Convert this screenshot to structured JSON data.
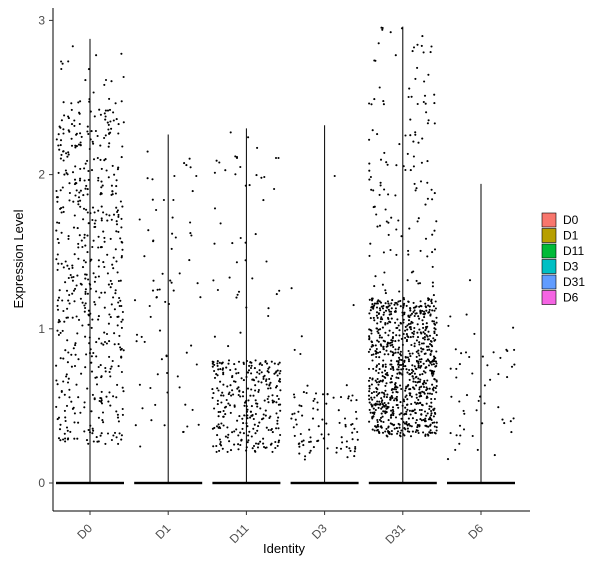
{
  "chart_data": {
    "type": "violin",
    "xlabel": "Identity",
    "ylabel": "Expression Level",
    "ylim": [
      -0.08,
      3.05
    ],
    "yticks": [
      0,
      1,
      2,
      3
    ],
    "categories": [
      "D0",
      "D1",
      "D11",
      "D3",
      "D31",
      "D6"
    ],
    "groups": [
      {
        "name": "D0",
        "color": "#F8766D",
        "max": 2.88,
        "zero_band": true,
        "nonzero_count": 560,
        "nonzero_min": 0.25,
        "nonzero_max": 2.88,
        "dense_range": [
          0.25,
          2.5
        ]
      },
      {
        "name": "D1",
        "color": "#B79F00",
        "max": 2.26,
        "zero_band": true,
        "nonzero_count": 75,
        "nonzero_min": 0.2,
        "nonzero_max": 2.26,
        "dense_range": [
          0.3,
          2.1
        ]
      },
      {
        "name": "D11",
        "color": "#00BA38",
        "max": 2.3,
        "zero_band": true,
        "nonzero_count": 340,
        "nonzero_min": 0.2,
        "nonzero_max": 2.3,
        "dense_range": [
          0.2,
          0.8
        ]
      },
      {
        "name": "D3",
        "color": "#00BFC4",
        "max": 2.32,
        "zero_band": true,
        "nonzero_count": 95,
        "nonzero_min": 0.15,
        "nonzero_max": 2.32,
        "dense_range": [
          0.15,
          0.6
        ]
      },
      {
        "name": "D31",
        "color": "#619CFF",
        "max": 2.96,
        "zero_band": true,
        "nonzero_count": 1000,
        "nonzero_min": 0.3,
        "nonzero_max": 2.96,
        "dense_range": [
          0.3,
          1.2
        ]
      },
      {
        "name": "D6",
        "color": "#F564E3",
        "max": 1.94,
        "zero_band": true,
        "nonzero_count": 55,
        "nonzero_min": 0.15,
        "nonzero_max": 1.94,
        "dense_range": [
          0.15,
          0.9
        ]
      }
    ],
    "legend": {
      "position": "right",
      "entries": [
        "D0",
        "D1",
        "D11",
        "D3",
        "D31",
        "D6"
      ]
    },
    "grid": false
  }
}
